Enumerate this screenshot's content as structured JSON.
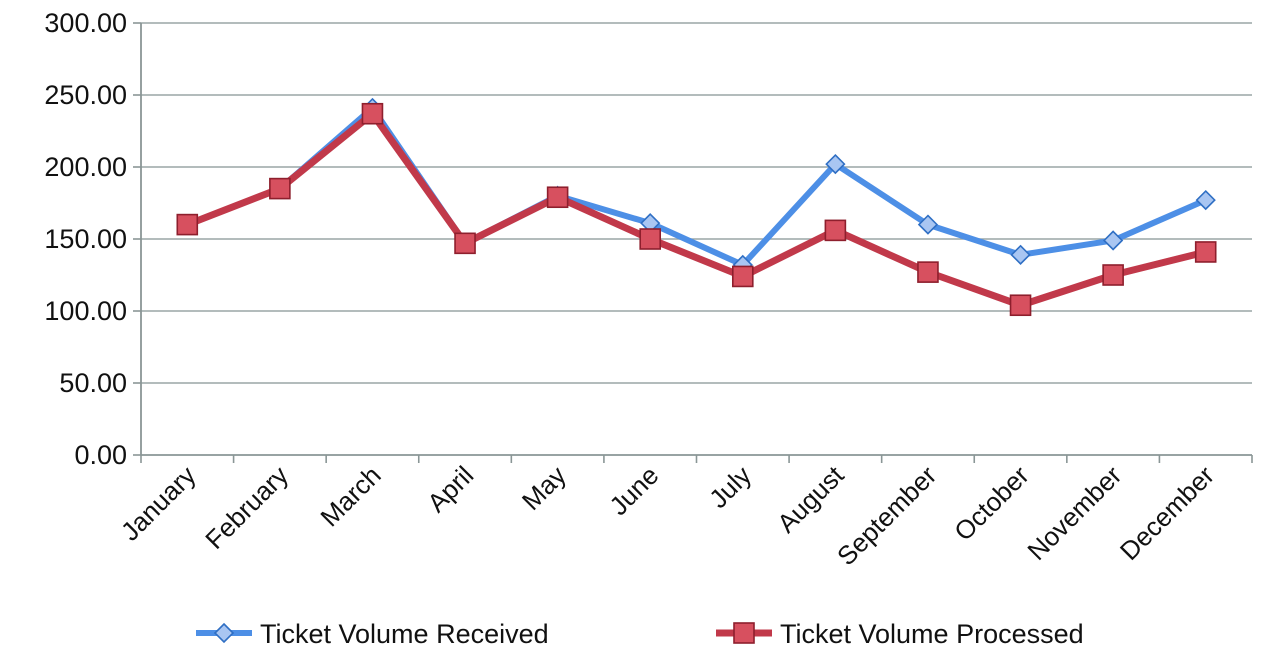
{
  "chart_data": {
    "type": "line",
    "categories": [
      "January",
      "February",
      "March",
      "April",
      "May",
      "June",
      "July",
      "August",
      "September",
      "October",
      "November",
      "December"
    ],
    "ylim": [
      0,
      300
    ],
    "yticks": [
      "0.00",
      "50.00",
      "100.00",
      "150.00",
      "200.00",
      "250.00",
      "300.00"
    ],
    "ytick_values": [
      0,
      50,
      100,
      150,
      200,
      250,
      300
    ],
    "grid": true,
    "legend_position": "bottom",
    "series": [
      {
        "name": "Ticket Volume Received",
        "color": "#4d8fe6",
        "marker": "diamond",
        "values": [
          160,
          185,
          241,
          147,
          180,
          161,
          132,
          202,
          160,
          139,
          149,
          177
        ]
      },
      {
        "name": "Ticket Volume Processed",
        "color": "#c1394a",
        "marker": "square",
        "values": [
          160,
          185,
          237,
          147,
          179,
          150,
          124,
          156,
          127,
          104,
          125,
          141
        ]
      }
    ]
  }
}
